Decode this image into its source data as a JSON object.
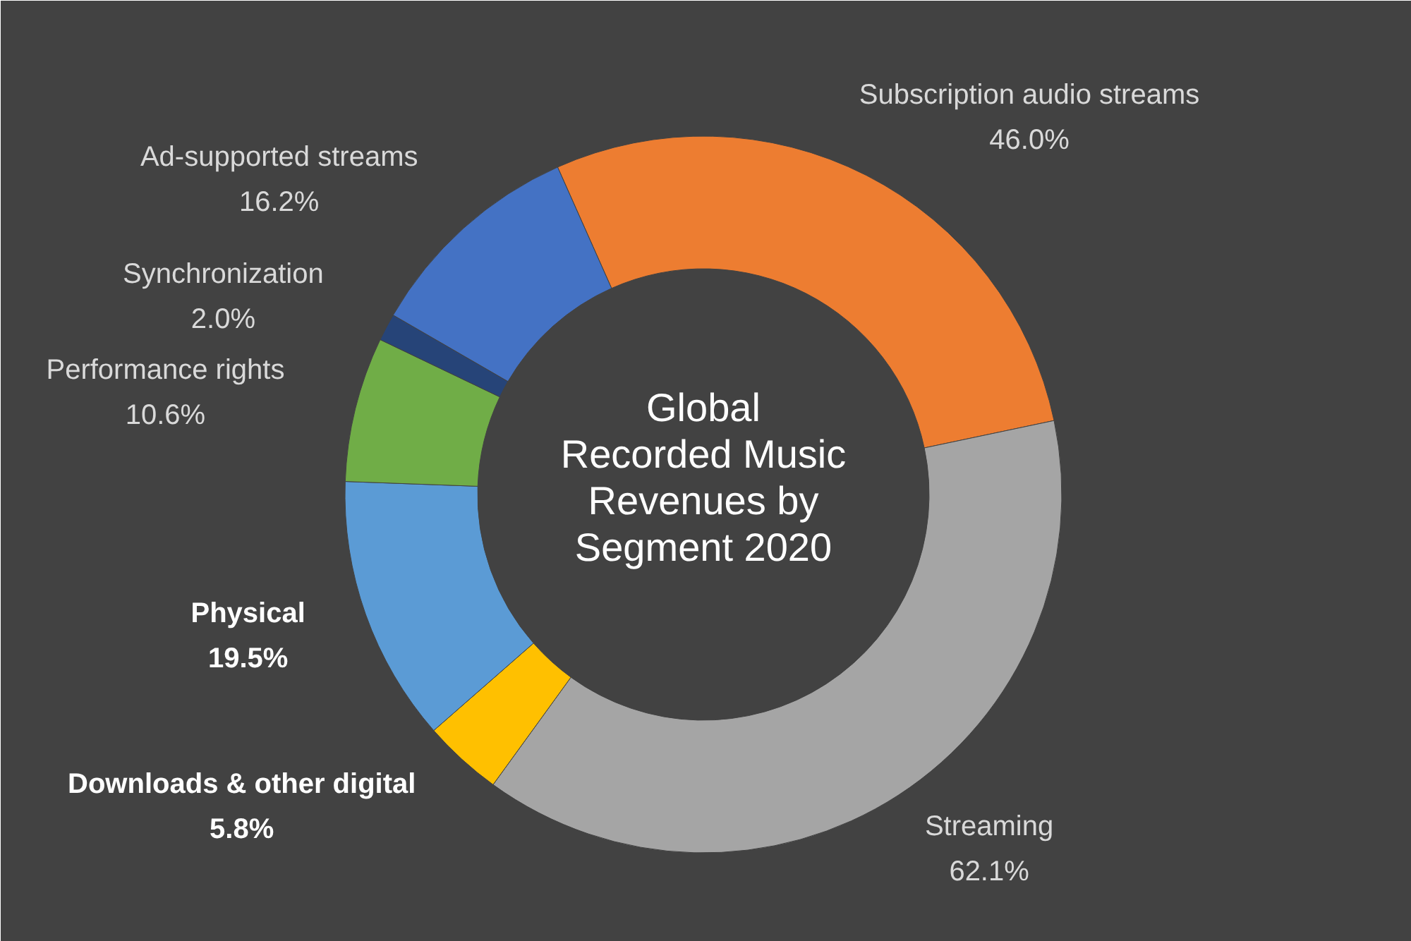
{
  "chart_data": {
    "type": "donut",
    "title": "Global Recorded Music Revenues by Segment 2020",
    "categories": [
      "Subscription audio streams",
      "Streaming",
      "Downloads & other digital",
      "Physical",
      "Performance rights",
      "Synchronization",
      "Ad-supported streams"
    ],
    "values": [
      46.0,
      62.1,
      5.8,
      19.5,
      10.6,
      2.0,
      16.2
    ],
    "value_labels": [
      "46.0%",
      "62.1%",
      "5.8%",
      "19.5%",
      "10.6%",
      "2.0%",
      "16.2%"
    ],
    "colors": [
      "#ed7d31",
      "#a5a5a5",
      "#ffc000",
      "#5b9bd5",
      "#70ad47",
      "#264478",
      "#4472c4"
    ]
  }
}
